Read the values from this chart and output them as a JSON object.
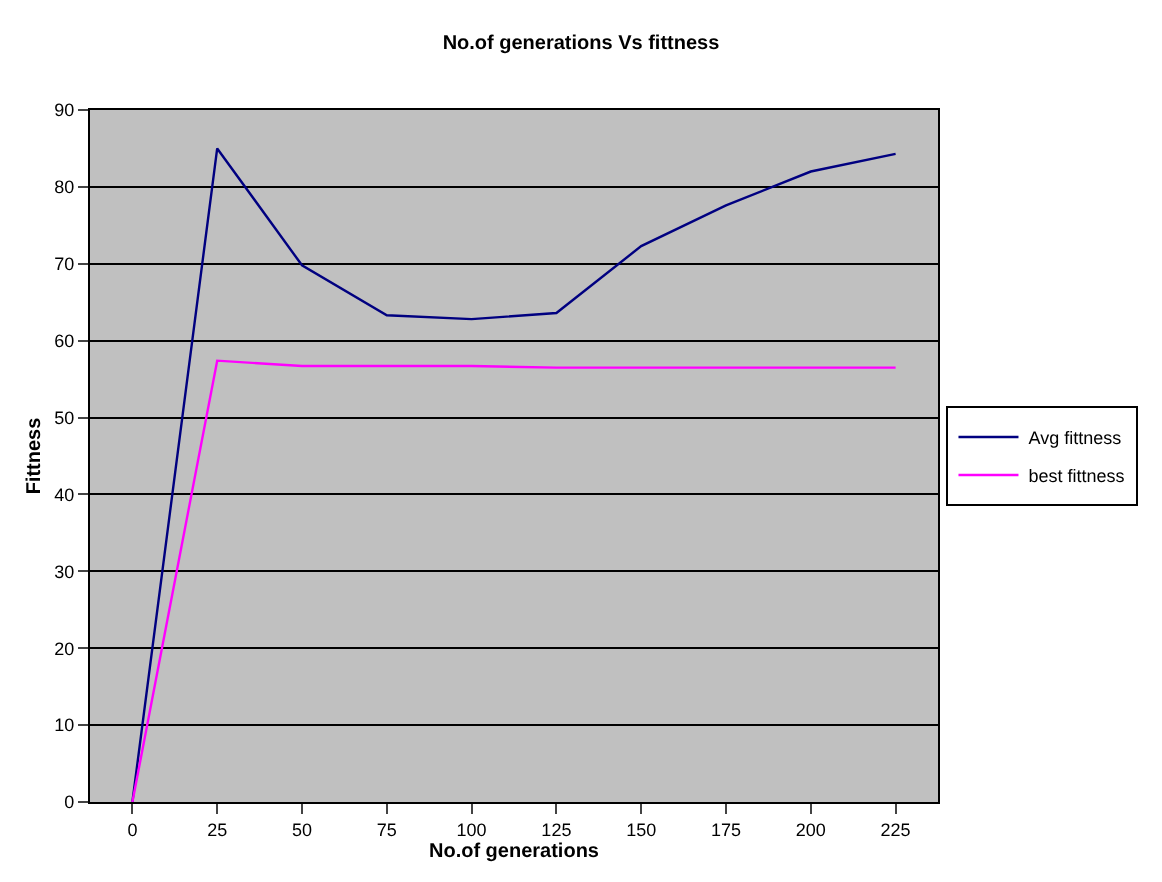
{
  "chart_data": {
    "type": "line",
    "title": "No.of generations Vs fittness",
    "xlabel": "No.of generations",
    "ylabel": "Fittness",
    "categories": [
      "0",
      "25",
      "50",
      "75",
      "100",
      "125",
      "150",
      "175",
      "200",
      "225"
    ],
    "series": [
      {
        "name": "Avg fittness",
        "color": "#000080",
        "values": [
          0,
          85,
          69.8,
          63.3,
          62.8,
          63.6,
          72.3,
          77.6,
          82,
          84.3
        ]
      },
      {
        "name": "best fittness",
        "color": "#ff00ff",
        "values": [
          0,
          57.4,
          56.7,
          56.7,
          56.7,
          56.5,
          56.5,
          56.5,
          56.5,
          56.5
        ]
      }
    ],
    "ylim": [
      0,
      90
    ],
    "yticks": [
      0,
      10,
      20,
      30,
      40,
      50,
      60,
      70,
      80,
      90
    ],
    "grid": "y",
    "legend": "right",
    "marker": "none",
    "line_style": "solid"
  }
}
